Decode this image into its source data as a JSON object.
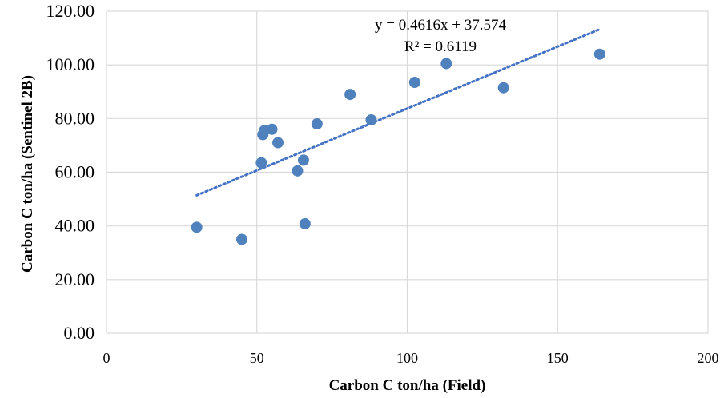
{
  "chart_data": {
    "type": "scatter",
    "title": "",
    "xlabel": "Carbon C ton/ha (Field)",
    "ylabel": "Carbon  C ton/ha (Sentinel 2B)",
    "xlim": [
      0,
      200
    ],
    "ylim": [
      0,
      120
    ],
    "x_ticks": [
      "0",
      "50",
      "100",
      "150",
      "200"
    ],
    "y_ticks": [
      "0.00",
      "20.00",
      "40.00",
      "60.00",
      "80.00",
      "100.00",
      "120.00"
    ],
    "grid": true,
    "marker_color": "#4F81BD",
    "trendline_color": "#4472C4",
    "points": [
      {
        "x": 30,
        "y": 39.5
      },
      {
        "x": 45,
        "y": 35.0
      },
      {
        "x": 51.5,
        "y": 63.5
      },
      {
        "x": 52,
        "y": 74.0
      },
      {
        "x": 52.5,
        "y": 75.5
      },
      {
        "x": 55,
        "y": 76.0
      },
      {
        "x": 57,
        "y": 71.0
      },
      {
        "x": 63.5,
        "y": 60.5
      },
      {
        "x": 65.5,
        "y": 64.5
      },
      {
        "x": 66,
        "y": 40.8
      },
      {
        "x": 70,
        "y": 78.0
      },
      {
        "x": 81,
        "y": 89.0
      },
      {
        "x": 88,
        "y": 79.5
      },
      {
        "x": 102.5,
        "y": 93.5
      },
      {
        "x": 113,
        "y": 100.5
      },
      {
        "x": 132,
        "y": 91.5
      },
      {
        "x": 164,
        "y": 104.0
      }
    ],
    "trendline": {
      "slope": 0.4616,
      "intercept": 37.574,
      "x_range": [
        30,
        164
      ],
      "equation": "y = 0.4616x + 37.574",
      "r_squared": "R² = 0.6119"
    }
  }
}
